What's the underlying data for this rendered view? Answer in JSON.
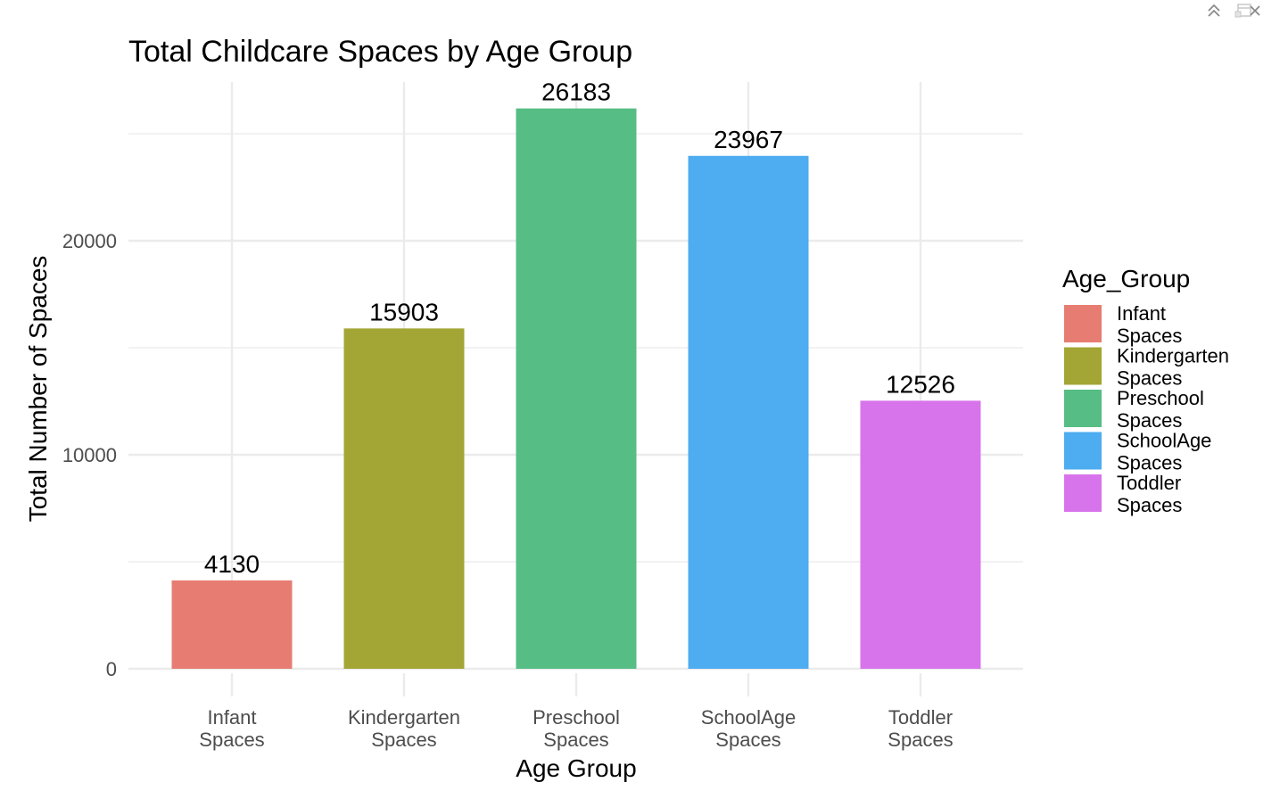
{
  "window": {
    "controls": [
      {
        "name": "popout-icon"
      },
      {
        "name": "collapse-icon"
      },
      {
        "name": "close-icon"
      }
    ]
  },
  "chart_data": {
    "type": "bar",
    "title": "Total Childcare Spaces by Age Group",
    "xlabel": "Age Group",
    "ylabel": "Total Number of Spaces",
    "categories": [
      [
        "Infant",
        "Spaces"
      ],
      [
        "Kindergarten",
        "Spaces"
      ],
      [
        "Preschool",
        "Spaces"
      ],
      [
        "SchoolAge",
        "Spaces"
      ],
      [
        "Toddler",
        "Spaces"
      ]
    ],
    "values": [
      4130,
      15903,
      26183,
      23967,
      12526
    ],
    "data_labels": [
      "4130",
      "15903",
      "26183",
      "23967",
      "12526"
    ],
    "colors": [
      "#E77D72",
      "#A3A535",
      "#56BD84",
      "#4EACF0",
      "#D874EB"
    ],
    "ylim": [
      0,
      27500
    ],
    "yticks": [
      0,
      10000,
      20000
    ],
    "ytick_labels": [
      "0",
      "10000",
      "20000"
    ],
    "grid": true,
    "legend": {
      "title": "Age_Group",
      "placement": "right",
      "entries": [
        [
          "Infant",
          "Spaces"
        ],
        [
          "Kindergarten",
          "Spaces"
        ],
        [
          "Preschool",
          "Spaces"
        ],
        [
          "SchoolAge",
          "Spaces"
        ],
        [
          "Toddler",
          "Spaces"
        ]
      ]
    }
  }
}
